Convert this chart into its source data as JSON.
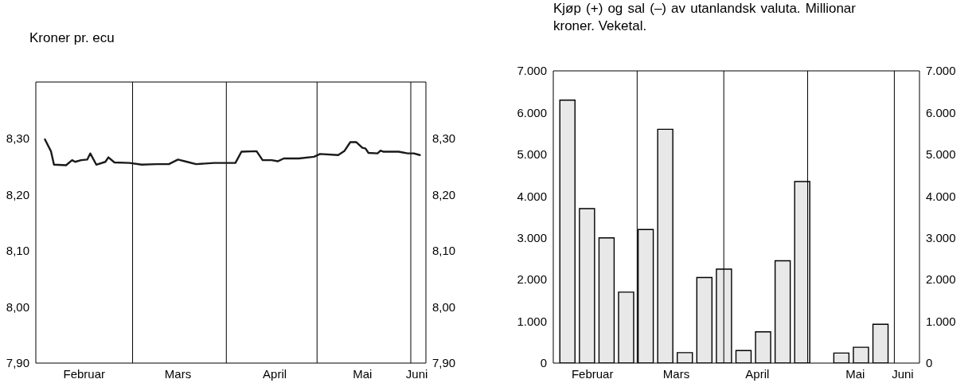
{
  "chart_data": [
    {
      "type": "line",
      "title": "Kroner pr. ecu",
      "x": [
        "--01-31",
        "--02-02",
        "--02-03",
        "--02-07",
        "--02-09",
        "--02-10",
        "--02-12",
        "--02-14",
        "--02-15",
        "--02-17",
        "--02-20",
        "--02-21",
        "--02-23",
        "--02-28",
        "--03-04",
        "--03-09",
        "--03-13",
        "--03-16",
        "--03-19",
        "--03-22",
        "--03-28",
        "--04-04",
        "--04-06",
        "--04-11",
        "--04-13",
        "--04-16",
        "--04-18",
        "--04-20",
        "--04-25",
        "--04-30",
        "--05-02",
        "--05-08",
        "--05-10",
        "--05-12",
        "--05-14",
        "--05-16",
        "--05-17",
        "--05-18",
        "--05-21",
        "--05-22",
        "--05-23",
        "--05-28",
        "--05-31",
        "--06-02",
        "--06-04"
      ],
      "series": [
        {
          "color": "#1a1a1a",
          "values": [
            8.298,
            8.277,
            8.253,
            8.252,
            8.261,
            8.258,
            8.261,
            8.262,
            8.273,
            8.253,
            8.258,
            8.266,
            8.257,
            8.256,
            8.253,
            8.254,
            8.254,
            8.262,
            8.258,
            8.254,
            8.256,
            8.256,
            8.276,
            8.277,
            8.261,
            8.261,
            8.259,
            8.264,
            8.264,
            8.267,
            8.272,
            8.27,
            8.277,
            8.293,
            8.293,
            8.283,
            8.282,
            8.274,
            8.273,
            8.278,
            8.276,
            8.276,
            8.273,
            8.273,
            8.27
          ]
        }
      ],
      "xlim": [
        "--01-28",
        "--06-06"
      ],
      "xticks": [
        {
          "value": "--02-13",
          "label": "Februar"
        },
        {
          "value": "--03-16",
          "label": "Mars"
        },
        {
          "value": "--04-17",
          "label": "April"
        },
        {
          "value": "--05-16",
          "label": "Mai"
        },
        {
          "value": "--06-03",
          "label": "Juni"
        }
      ],
      "ylim": [
        7.9,
        8.4
      ],
      "yticks": [
        {
          "value": 7.9,
          "label": "7,90"
        },
        {
          "value": 8.0,
          "label": "8,00"
        },
        {
          "value": 8.1,
          "label": "8,10"
        },
        {
          "value": 8.2,
          "label": "8,20"
        },
        {
          "value": 8.3,
          "label": "8,30"
        }
      ],
      "y2lim": [
        7.9,
        8.4
      ],
      "y2ticks": [
        {
          "value": 7.9,
          "label": "7,90"
        },
        {
          "value": 8.0,
          "label": "8,00"
        },
        {
          "value": 8.1,
          "label": "8,10"
        },
        {
          "value": 8.2,
          "label": "8,20"
        },
        {
          "value": 8.3,
          "label": "8,30"
        }
      ],
      "ref_lines": [
        {
          "axis": "x",
          "value": "--03-01"
        },
        {
          "axis": "x",
          "value": "--04-01"
        },
        {
          "axis": "x",
          "value": "--05-01"
        },
        {
          "axis": "x",
          "value": "--06-01"
        }
      ],
      "grid": false,
      "legend": false,
      "marker": "none",
      "line_style": "solid"
    },
    {
      "type": "bar",
      "title": "Kjøp (+) og sal (–) av utanlandsk valuta. Millionar kroner. Veketal.",
      "x": [
        "--02-04",
        "--02-11",
        "--02-18",
        "--02-25",
        "--03-04",
        "--03-11",
        "--03-18",
        "--03-25",
        "--04-01",
        "--04-08",
        "--04-15",
        "--04-22",
        "--04-29",
        "--05-13",
        "--05-20",
        "--05-27"
      ],
      "series": [
        {
          "color": "#e8e8e8",
          "values": [
            6300,
            3700,
            3000,
            1700,
            3200,
            5600,
            250,
            2050,
            2250,
            300,
            750,
            2450,
            4350,
            240,
            380,
            930
          ]
        }
      ],
      "xlim": [
        "--01-30",
        "--06-10"
      ],
      "xticks": [
        {
          "value": "--02-13",
          "label": "Februar"
        },
        {
          "value": "--03-15",
          "label": "Mars"
        },
        {
          "value": "--04-13",
          "label": "April"
        },
        {
          "value": "--05-18",
          "label": "Mai"
        },
        {
          "value": "--06-04",
          "label": "Juni"
        }
      ],
      "ylim": [
        0,
        7000
      ],
      "yticks": [
        {
          "value": 0,
          "label": "0"
        },
        {
          "value": 1000,
          "label": "1.000"
        },
        {
          "value": 2000,
          "label": "2.000"
        },
        {
          "value": 3000,
          "label": "3.000"
        },
        {
          "value": 4000,
          "label": "4.000"
        },
        {
          "value": 5000,
          "label": "5.000"
        },
        {
          "value": 6000,
          "label": "6.000"
        },
        {
          "value": 7000,
          "label": "7.000"
        }
      ],
      "y2lim": [
        0,
        7000
      ],
      "y2ticks": [
        {
          "value": 0,
          "label": "0"
        },
        {
          "value": 1000,
          "label": "1.000"
        },
        {
          "value": 2000,
          "label": "2.000"
        },
        {
          "value": 3000,
          "label": "3.000"
        },
        {
          "value": 4000,
          "label": "4.000"
        },
        {
          "value": 5000,
          "label": "5.000"
        },
        {
          "value": 6000,
          "label": "6.000"
        },
        {
          "value": 7000,
          "label": "7.000"
        }
      ],
      "ref_lines": [
        {
          "axis": "x",
          "value": "--03-01"
        },
        {
          "axis": "x",
          "value": "--04-01"
        },
        {
          "axis": "x",
          "value": "--05-01"
        },
        {
          "axis": "x",
          "value": "--06-01"
        }
      ],
      "grid": false,
      "legend": false
    }
  ]
}
